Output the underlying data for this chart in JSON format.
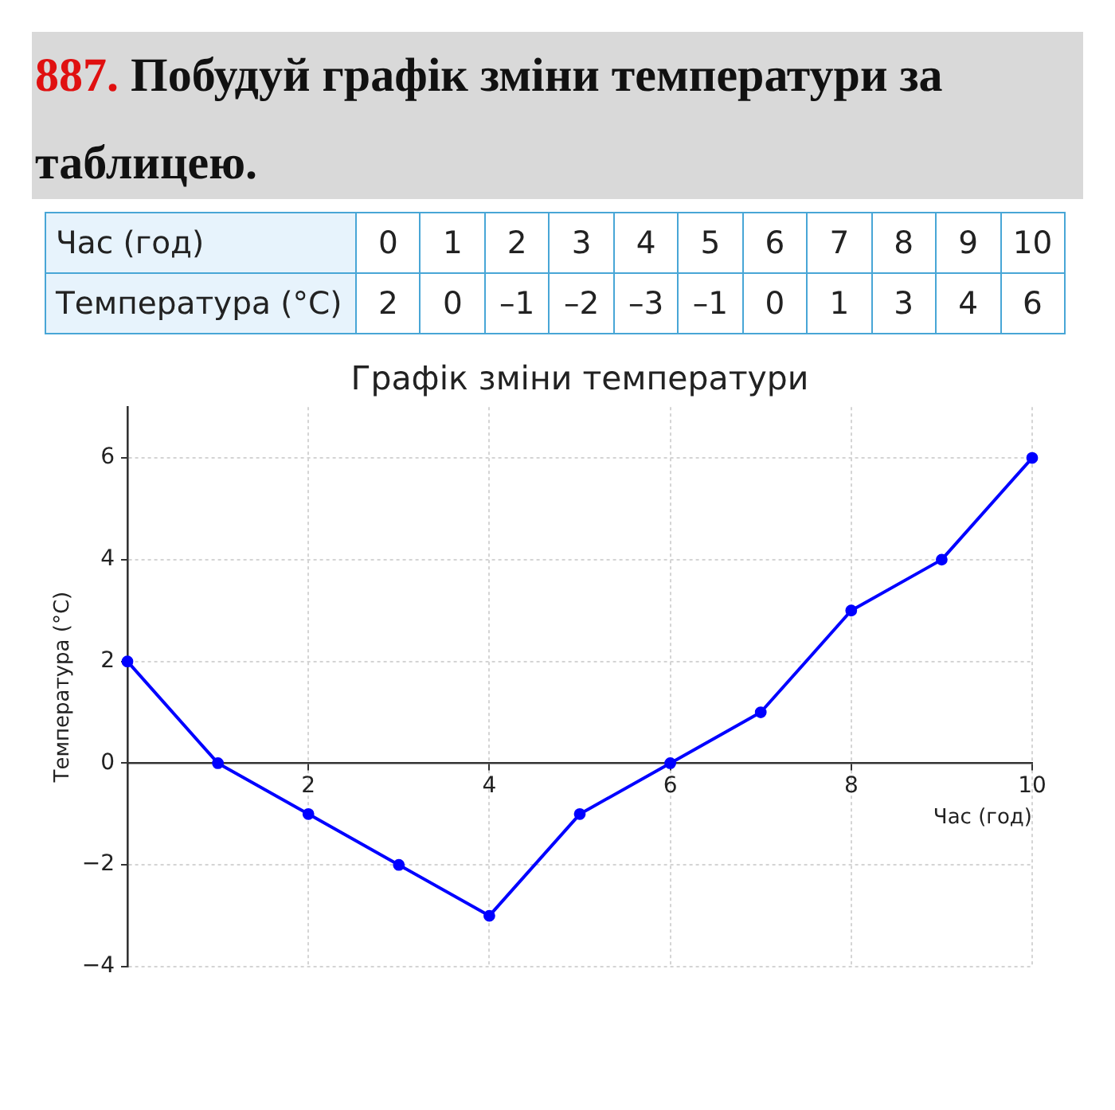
{
  "chart_data": [
    {
      "type": "heatmap",
      "annotations": [
        "887. Побудуй графік зміни температури за таблицею."
      ],
      "xlabel": "Час (год)",
      "categories": [
        "0",
        "1",
        "2",
        "3",
        "4",
        "5",
        "6",
        "7",
        "8",
        "9",
        "10"
      ],
      "y_categories": [
        "Температура (°C)"
      ],
      "cells": [
        [
          2,
          0,
          -1,
          -2,
          -3,
          -1,
          0,
          1,
          3,
          4,
          6
        ]
      ],
      "cell_labels": [
        [
          "2",
          "0",
          "–1",
          "–2",
          "–3",
          "–1",
          "0",
          "1",
          "3",
          "4",
          "6"
        ]
      ]
    },
    {
      "type": "line",
      "title": "Графік зміни температури",
      "xlabel": "Час (год)",
      "ylabel": "Температура (°C)",
      "x": [
        0,
        1,
        2,
        3,
        4,
        5,
        6,
        7,
        8,
        9,
        10
      ],
      "series": [
        {
          "color": "#0000ff",
          "values": [
            2,
            0,
            -1,
            -2,
            -3,
            -1,
            0,
            1,
            3,
            4,
            6
          ]
        }
      ],
      "xlim": [
        0,
        10
      ],
      "ylim": [
        -4,
        7
      ],
      "xticks": [
        {
          "value": 0,
          "label": null
        },
        2,
        4,
        6,
        8,
        10
      ],
      "yticks": [
        -4,
        -2,
        0,
        2,
        4,
        6
      ],
      "grid": true,
      "marker": "circle",
      "line_style": "solid"
    }
  ]
}
